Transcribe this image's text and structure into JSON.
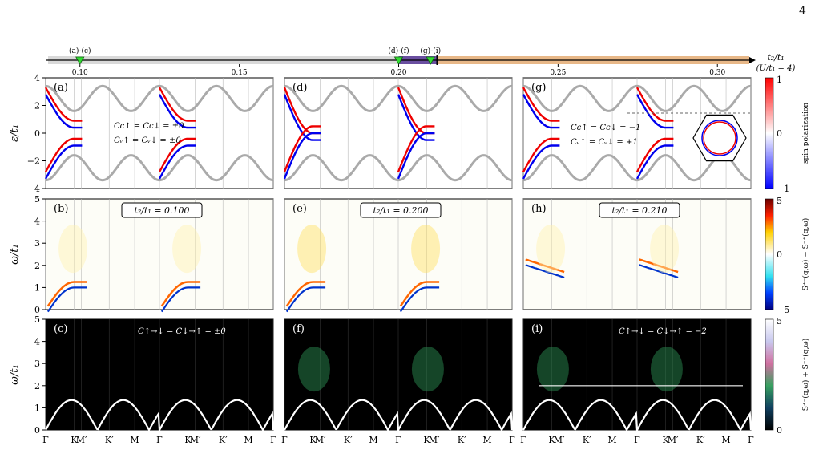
{
  "page_number": "4",
  "top_axis": {
    "label": "t₂/t₁",
    "sublabel": "(U/t₁ = 4)",
    "ticks": [
      {
        "v": 0.1,
        "label": "0.10"
      },
      {
        "v": 0.15,
        "label": "0.15"
      },
      {
        "v": 0.2,
        "label": "0.20"
      },
      {
        "v": 0.25,
        "label": "0.25"
      },
      {
        "v": 0.3,
        "label": "0.30"
      }
    ],
    "range": [
      0.09,
      0.31
    ],
    "markers": [
      {
        "v": 0.1,
        "label": "(a)-(c)"
      },
      {
        "v": 0.2,
        "label": "(d)-(f)"
      },
      {
        "v": 0.21,
        "label": "(g)-(i)"
      }
    ],
    "regions": [
      {
        "from": 0.09,
        "to": 0.2,
        "color": "#d9d9d9"
      },
      {
        "from": 0.2,
        "to": 0.212,
        "color": "#6a4fa0"
      },
      {
        "from": 0.212,
        "to": 0.31,
        "color": "#e8b888"
      }
    ]
  },
  "columns": [
    {
      "t2": "t₂/t₁ = 0.100"
    },
    {
      "t2": "t₂/t₁ = 0.200"
    },
    {
      "t2": "t₂/t₁ = 0.210"
    }
  ],
  "panel_labels": [
    "(a)",
    "(b)",
    "(c)",
    "(d)",
    "(e)",
    "(f)",
    "(g)",
    "(h)",
    "(i)"
  ],
  "row_ylabels": [
    "ε/t₁",
    "ω/t₁",
    "ω/t₁"
  ],
  "row1_yticks": [
    "4",
    "2",
    "0",
    "−2",
    "−4"
  ],
  "row23_yticks": [
    "5",
    "4",
    "3",
    "2",
    "1",
    "0"
  ],
  "x_ticks": [
    "Γ",
    "K",
    "M′",
    "K′",
    "M",
    "Γ",
    "K",
    "M′",
    "K′",
    "M",
    "Γ"
  ],
  "chern_text": {
    "a1": "Cᴄ↑ = Cᴄ↓ = ±0",
    "a2": "Cᵥ↑ = Cᵥ↓ = ±0",
    "g1": "Cᴄ↑ = Cᴄ↓ = −1",
    "g2": "Cᵥ↑ = Cᵥ↓ = +1",
    "c": "C↑→↓ = C↓→↑ = ±0",
    "i": "C↑→↓ = C↓→↑ = −2"
  },
  "colorbars": [
    {
      "label": "spin polarization",
      "top": "1",
      "mid": "0",
      "bottom": "−1"
    },
    {
      "label": "S⁺⁻(q,ω) − S⁻⁺(q,ω)",
      "top": "5",
      "mid": "0",
      "bottom": "−5"
    },
    {
      "label": "S⁺⁻(q,ω) + S⁻⁺(q,ω)",
      "top": "5",
      "mid": "",
      "bottom": "0"
    }
  ]
}
